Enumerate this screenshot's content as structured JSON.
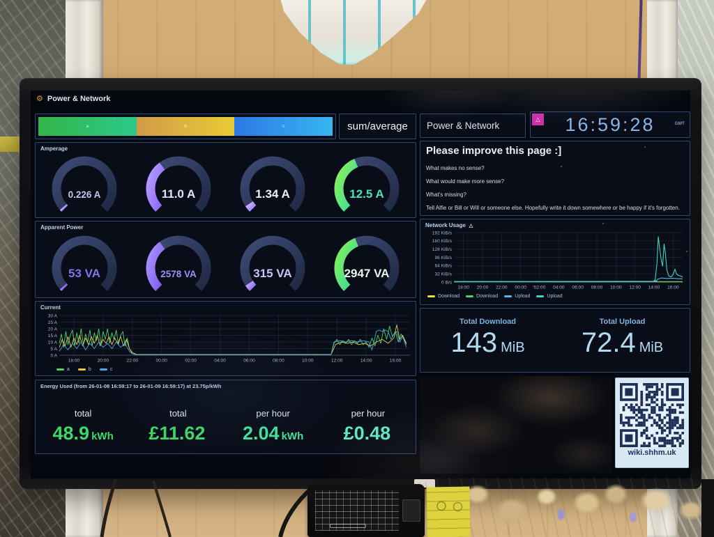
{
  "scene": {
    "qr_caption": "wiki.shhm.uk"
  },
  "dashboard": {
    "header": {
      "title": "Power & Network"
    },
    "top_row": {
      "sum_average": "sum/average",
      "title_panel": "Power & Network",
      "clock": {
        "time": "16:59:28",
        "timezone": "GMT"
      }
    },
    "phase_bar": {
      "segments": [
        {
          "label": "a",
          "colors": [
            "#33b447",
            "#2cc98c"
          ]
        },
        {
          "label": "b",
          "colors": [
            "#d19a4a",
            "#e8cc33"
          ]
        },
        {
          "label": "c",
          "colors": [
            "#2b78e4",
            "#38b6f0"
          ]
        }
      ]
    },
    "notes": {
      "heading": "Please improve this page :]",
      "lines": [
        "What makes no sense?",
        "What would make more sense?",
        "What's missing?",
        "Tell Alfie or Bill or Will or someone else. Hopefully write it down somewhere or be happy if it's forgotten."
      ]
    },
    "totals": {
      "download_label": "Total Download",
      "download_value": "143",
      "download_unit": "MiB",
      "upload_label": "Total Upload",
      "upload_value": "72.4",
      "upload_unit": "MiB"
    },
    "energy": {
      "title": "Energy Used (from 26-01-08 16:59:17 to 26-01-09 16:59:17) at 23.75p/kWh",
      "stats": [
        {
          "label": "total",
          "value": "48.9",
          "unit": "kWh",
          "color": "#3fd767"
        },
        {
          "label": "total",
          "value": "£11.62",
          "unit": "",
          "color": "#3fd767"
        },
        {
          "label": "per hour",
          "value": "2.04",
          "unit": "kWh",
          "color": "#42e39b"
        },
        {
          "label": "per hour",
          "value": "£0.48",
          "unit": "",
          "color": "#5ceec4"
        }
      ]
    }
  },
  "chart_data": [
    {
      "id": "current",
      "type": "line",
      "title": "Current",
      "ylabel": "A",
      "ylim": [
        0,
        30
      ],
      "yticks": [
        "0 A",
        "5 A",
        "10 A",
        "15 A",
        "20 A",
        "25 A",
        "30 A"
      ],
      "ytick_values": [
        0,
        5,
        10,
        15,
        20,
        25,
        30
      ],
      "x_range": [
        0,
        24
      ],
      "xticks": [
        "18:00",
        "20:00",
        "22:00",
        "00:00",
        "02:00",
        "04:00",
        "06:00",
        "08:00",
        "10:00",
        "12:00",
        "14:00",
        "16:00"
      ],
      "xtick_hours": [
        1,
        3,
        5,
        7,
        9,
        11,
        13,
        15,
        17,
        19,
        21,
        23
      ],
      "grid": true,
      "legend_position": "bottom",
      "line_width": 0.9,
      "series": [
        {
          "name": "a",
          "color": "#4fd06a",
          "points": [
            [
              0,
              9
            ],
            [
              0.15,
              16
            ],
            [
              0.3,
              6
            ],
            [
              0.45,
              18
            ],
            [
              0.6,
              8
            ],
            [
              0.75,
              15
            ],
            [
              0.9,
              19
            ],
            [
              1.05,
              7
            ],
            [
              1.2,
              17
            ],
            [
              1.35,
              9
            ],
            [
              1.5,
              20
            ],
            [
              1.65,
              8
            ],
            [
              1.8,
              16
            ],
            [
              1.95,
              10
            ],
            [
              2.1,
              19
            ],
            [
              2.25,
              7
            ],
            [
              2.4,
              17
            ],
            [
              2.55,
              11
            ],
            [
              2.7,
              20
            ],
            [
              2.85,
              8
            ],
            [
              3,
              18
            ],
            [
              3.15,
              12
            ],
            [
              3.3,
              20
            ],
            [
              3.45,
              9
            ],
            [
              3.6,
              17
            ],
            [
              3.75,
              12
            ],
            [
              3.9,
              19
            ],
            [
              4.05,
              8
            ],
            [
              4.2,
              15
            ],
            [
              4.35,
              18
            ],
            [
              4.5,
              7
            ],
            [
              4.65,
              13
            ],
            [
              4.8,
              5
            ],
            [
              5,
              1
            ],
            [
              5.3,
              0.4
            ],
            [
              18.6,
              0.4
            ],
            [
              18.8,
              9
            ],
            [
              19,
              12
            ],
            [
              19.2,
              8
            ],
            [
              19.4,
              11
            ],
            [
              19.6,
              9
            ],
            [
              19.8,
              12
            ],
            [
              20,
              8
            ],
            [
              20.2,
              11
            ],
            [
              20.4,
              9
            ],
            [
              20.6,
              12
            ],
            [
              20.8,
              8
            ],
            [
              21,
              10
            ],
            [
              21.2,
              6
            ],
            [
              21.4,
              13
            ],
            [
              21.6,
              7
            ],
            [
              21.8,
              15
            ],
            [
              22,
              9
            ],
            [
              22.2,
              20
            ],
            [
              22.4,
              12
            ],
            [
              22.6,
              22
            ],
            [
              22.8,
              14
            ],
            [
              23,
              18
            ],
            [
              23.2,
              10
            ],
            [
              23.4,
              16
            ],
            [
              23.6,
              12
            ],
            [
              23.75,
              8
            ]
          ]
        },
        {
          "name": "b",
          "color": "#e0ca45",
          "points": [
            [
              0,
              6
            ],
            [
              0.2,
              12
            ],
            [
              0.4,
              7
            ],
            [
              0.6,
              14
            ],
            [
              0.8,
              6
            ],
            [
              1,
              13
            ],
            [
              1.2,
              8
            ],
            [
              1.4,
              15
            ],
            [
              1.6,
              7
            ],
            [
              1.8,
              13
            ],
            [
              2,
              8
            ],
            [
              2.2,
              14
            ],
            [
              2.4,
              9
            ],
            [
              2.6,
              15
            ],
            [
              2.8,
              7
            ],
            [
              3,
              12
            ],
            [
              3.2,
              9
            ],
            [
              3.4,
              14
            ],
            [
              3.6,
              8
            ],
            [
              3.8,
              13
            ],
            [
              4,
              9
            ],
            [
              4.2,
              14
            ],
            [
              4.4,
              7
            ],
            [
              4.6,
              12
            ],
            [
              4.8,
              5
            ],
            [
              5,
              2
            ],
            [
              5.3,
              0.5
            ],
            [
              18.6,
              0.5
            ],
            [
              18.9,
              8
            ],
            [
              19.3,
              10
            ],
            [
              19.7,
              9
            ],
            [
              20.1,
              10
            ],
            [
              20.5,
              8
            ],
            [
              20.9,
              9
            ],
            [
              21.3,
              7
            ],
            [
              21.7,
              10
            ],
            [
              22.1,
              12
            ],
            [
              22.5,
              9
            ],
            [
              22.9,
              13
            ],
            [
              23.1,
              23
            ],
            [
              23.3,
              12
            ],
            [
              23.5,
              15
            ],
            [
              23.75,
              9
            ]
          ]
        },
        {
          "name": "c",
          "color": "#45a8e8",
          "points": [
            [
              0,
              3
            ],
            [
              0.3,
              8
            ],
            [
              0.6,
              4
            ],
            [
              0.9,
              9
            ],
            [
              1.2,
              5
            ],
            [
              1.5,
              10
            ],
            [
              1.8,
              4
            ],
            [
              2.1,
              9
            ],
            [
              2.4,
              5
            ],
            [
              2.7,
              10
            ],
            [
              3,
              6
            ],
            [
              3.3,
              9
            ],
            [
              3.6,
              5
            ],
            [
              3.9,
              10
            ],
            [
              4.2,
              6
            ],
            [
              4.5,
              9
            ],
            [
              4.8,
              3
            ],
            [
              5,
              1
            ],
            [
              5.3,
              0.3
            ],
            [
              18.6,
              0.3
            ],
            [
              18.8,
              10
            ],
            [
              19.2,
              11
            ],
            [
              19.6,
              10
            ],
            [
              20,
              11
            ],
            [
              20.4,
              10
            ],
            [
              20.8,
              11
            ],
            [
              21.2,
              10
            ],
            [
              21.4,
              4
            ],
            [
              21.7,
              18
            ],
            [
              21.9,
              19
            ],
            [
              22.1,
              18
            ],
            [
              22.3,
              19
            ],
            [
              22.5,
              18
            ],
            [
              22.7,
              12
            ],
            [
              22.9,
              16
            ],
            [
              23.1,
              18
            ],
            [
              23.3,
              10
            ],
            [
              23.5,
              14
            ],
            [
              23.75,
              6
            ]
          ]
        }
      ]
    },
    {
      "id": "network",
      "type": "line",
      "title": "Network Usage",
      "ylabel": "KiB/s",
      "ylim": [
        0,
        192
      ],
      "yticks": [
        "0 B/s",
        "32 KiB/s",
        "64 KiB/s",
        "96 KiB/s",
        "128 KiB/s",
        "160 KiB/s",
        "192 KiB/s"
      ],
      "ytick_values": [
        0,
        32,
        64,
        96,
        128,
        160,
        192
      ],
      "x_range": [
        0,
        24
      ],
      "xticks": [
        "18:00",
        "20:00",
        "22:00",
        "00:00",
        "02:00",
        "04:00",
        "06:00",
        "08:00",
        "10:00",
        "12:00",
        "14:00",
        "16:00"
      ],
      "xtick_hours": [
        1,
        3,
        5,
        7,
        9,
        11,
        13,
        15,
        17,
        19,
        21,
        23
      ],
      "grid": true,
      "legend_position": "bottom",
      "line_width": 1.1,
      "series": [
        {
          "name": "Download",
          "color": "#e8e337",
          "points": [
            [
              0,
              1
            ],
            [
              24,
              1
            ]
          ]
        },
        {
          "name": "Download",
          "color": "#4fd06a",
          "points": [
            [
              0,
              1.5
            ],
            [
              20.9,
              1.5
            ],
            [
              21.1,
              8
            ],
            [
              21.3,
              2
            ],
            [
              24,
              2
            ]
          ]
        },
        {
          "name": "Upload",
          "color": "#58b6e8",
          "points": [
            [
              0,
              2
            ],
            [
              21.2,
              2
            ],
            [
              21.4,
              12
            ],
            [
              21.8,
              16
            ],
            [
              22.3,
              14
            ],
            [
              23,
              15
            ],
            [
              23.5,
              13
            ],
            [
              24,
              13
            ]
          ]
        },
        {
          "name": "Upload",
          "color": "#3fd4c4",
          "points": [
            [
              0,
              2
            ],
            [
              21.1,
              3
            ],
            [
              21.3,
              70
            ],
            [
              21.45,
              176
            ],
            [
              21.6,
              128
            ],
            [
              21.75,
              86
            ],
            [
              21.9,
              62
            ],
            [
              22.05,
              148
            ],
            [
              22.2,
              110
            ],
            [
              22.35,
              46
            ],
            [
              22.55,
              24
            ],
            [
              22.8,
              20
            ],
            [
              23,
              30
            ],
            [
              23.2,
              50
            ],
            [
              23.35,
              32
            ],
            [
              23.55,
              26
            ],
            [
              23.75,
              24
            ],
            [
              24,
              20
            ]
          ]
        }
      ]
    },
    {
      "id": "amperage_gauges",
      "type": "gauge",
      "title": "Amperage",
      "track_colors": [
        "#3d4b76",
        "#202944"
      ],
      "gauges": [
        {
          "value": "0.226 A",
          "fraction": 0.012,
          "arc_colors": [
            "#c4b0ff",
            "#a384ff"
          ],
          "value_color": "#cbc2ee",
          "small": true
        },
        {
          "value": "11.0 A",
          "fraction": 0.367,
          "arc_colors": [
            "#b49aff",
            "#8a66f5"
          ],
          "value_color": "#e6e1fa",
          "small": false
        },
        {
          "value": "1.34 A",
          "fraction": 0.045,
          "arc_colors": [
            "#c4b0ff",
            "#a384ff"
          ],
          "value_color": "#f1eefb",
          "small": false
        },
        {
          "value": "12.5 A",
          "fraction": 0.417,
          "arc_colors": [
            "#8df05c",
            "#31d9a2"
          ],
          "value_color": "#4ce0bd",
          "small": false
        }
      ]
    },
    {
      "id": "apparent_power_gauges",
      "type": "gauge",
      "title": "Apparent Power",
      "track_colors": [
        "#3d4b76",
        "#202944"
      ],
      "gauges": [
        {
          "value": "53 VA",
          "fraction": 0.012,
          "arc_colors": [
            "#a88cfc",
            "#7e5cf0"
          ],
          "value_color": "#8372e8",
          "small": false
        },
        {
          "value": "2578 VA",
          "fraction": 0.368,
          "arc_colors": [
            "#a98ffc",
            "#7e5af0"
          ],
          "value_color": "#9f8ff0",
          "small": true
        },
        {
          "value": "315 VA",
          "fraction": 0.045,
          "arc_colors": [
            "#b89cff",
            "#9a74f8"
          ],
          "value_color": "#cfc2fa",
          "small": false
        },
        {
          "value": "2947 VA",
          "fraction": 0.421,
          "arc_colors": [
            "#84ef58",
            "#2ed7a5"
          ],
          "value_color": "#e8f7ee",
          "small": false
        }
      ]
    }
  ]
}
